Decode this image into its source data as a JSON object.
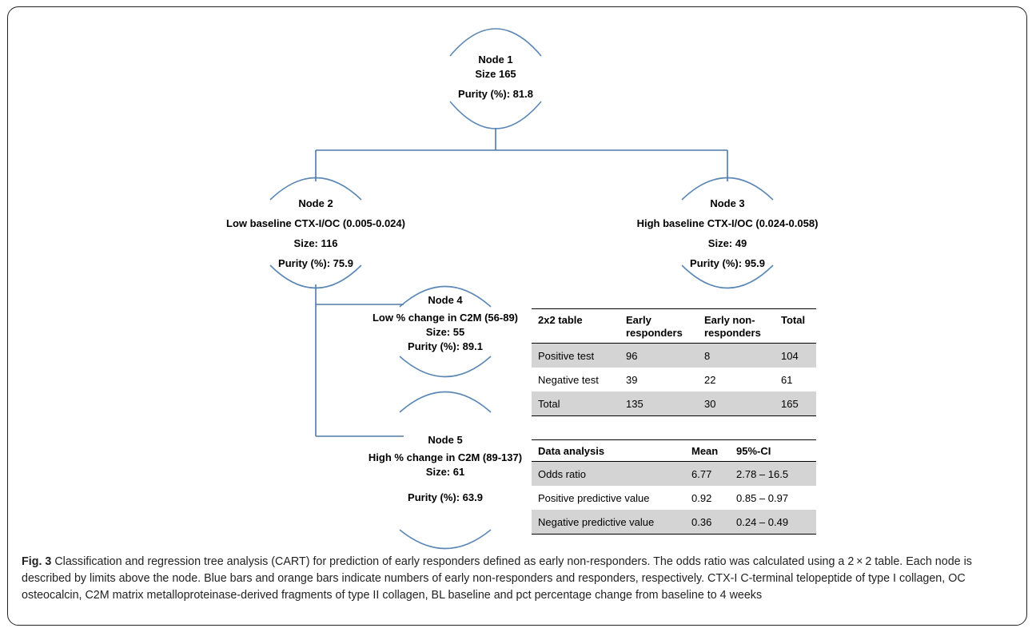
{
  "nodes": {
    "node1": {
      "title": "Node 1",
      "size": "Size 165",
      "purity": "Purity (%): 81.8"
    },
    "node2": {
      "title": "Node 2",
      "range": "Low baseline CTX-I/OC (0.005-0.024)",
      "size": "Size: 116",
      "purity": "Purity (%):  75.9"
    },
    "node3": {
      "title": "Node 3",
      "range": "High baseline CTX-I/OC (0.024-0.058)",
      "size": "Size: 49",
      "purity": "Purity (%):  95.9"
    },
    "node4": {
      "title": "Node 4",
      "range": "Low % change in C2M (56-89)",
      "size": "Size: 55",
      "purity": "Purity (%): 89.1"
    },
    "node5": {
      "title": "Node 5",
      "range": "High % change in C2M (89-137)",
      "size": "Size: 61",
      "purity": "Purity (%): 63.9"
    }
  },
  "contingency_table": {
    "headers": [
      "2x2 table",
      "Early responders",
      "Early non-responders",
      "Total"
    ],
    "rows": [
      [
        "Positive test",
        "96",
        "8",
        "104"
      ],
      [
        "Negative test",
        "39",
        "22",
        "61"
      ],
      [
        "Total",
        "135",
        "30",
        "165"
      ]
    ]
  },
  "analysis_table": {
    "headers": [
      "Data analysis",
      "Mean",
      "95%-CI"
    ],
    "rows": [
      [
        "Odds ratio",
        "6.77",
        "2.78 – 16.5"
      ],
      [
        "Positive predictive value",
        "0.92",
        "0.85 – 0.97"
      ],
      [
        "Negative predictive value",
        "0.36",
        "0.24 – 0.49"
      ]
    ]
  },
  "caption": {
    "label": "Fig. 3",
    "text": " Classification and regression tree analysis (CART) for prediction of early responders defined as early non-responders. The odds ratio was calculated using a 2 × 2 table. Each node is described by limits above the node. Blue bars and orange bars indicate numbers of early non-responders and responders, respectively. CTX-I C-terminal telopeptide of type I collagen, OC osteocalcin, C2M matrix metalloproteinase-derived fragments of type II collagen, BL baseline and pct percentage change from baseline to 4 weeks"
  },
  "colors": {
    "arc": "#5b87b5",
    "connector": "#4f7aa8",
    "shade": "#d4d4d4"
  }
}
